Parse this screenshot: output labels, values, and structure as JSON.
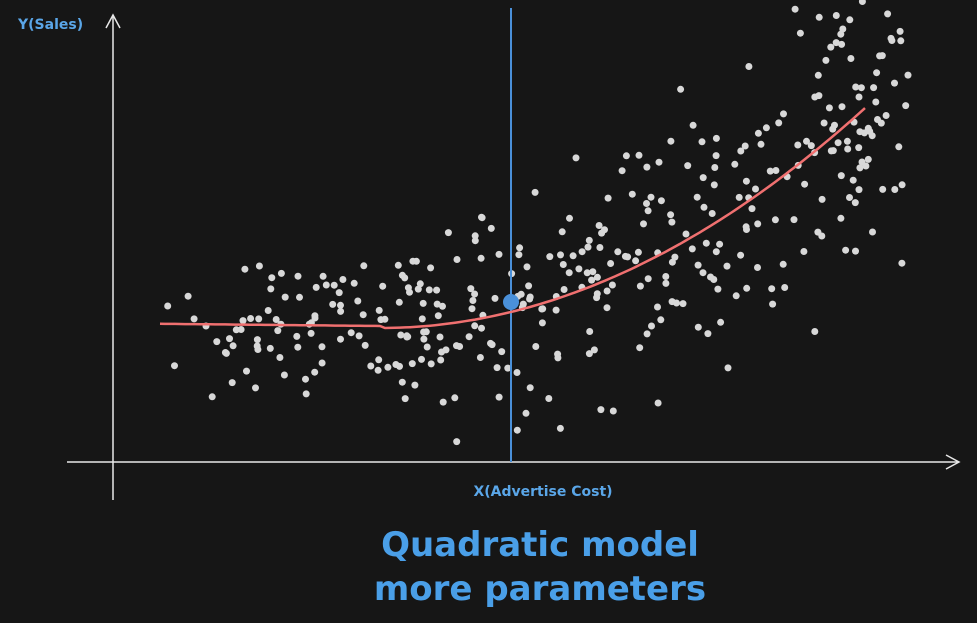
{
  "axes": {
    "y_label": "Y(Sales)",
    "x_label": "X(Advertise Cost)"
  },
  "caption": {
    "line1": "Quadratic model",
    "line2": "more parameters"
  }
}
